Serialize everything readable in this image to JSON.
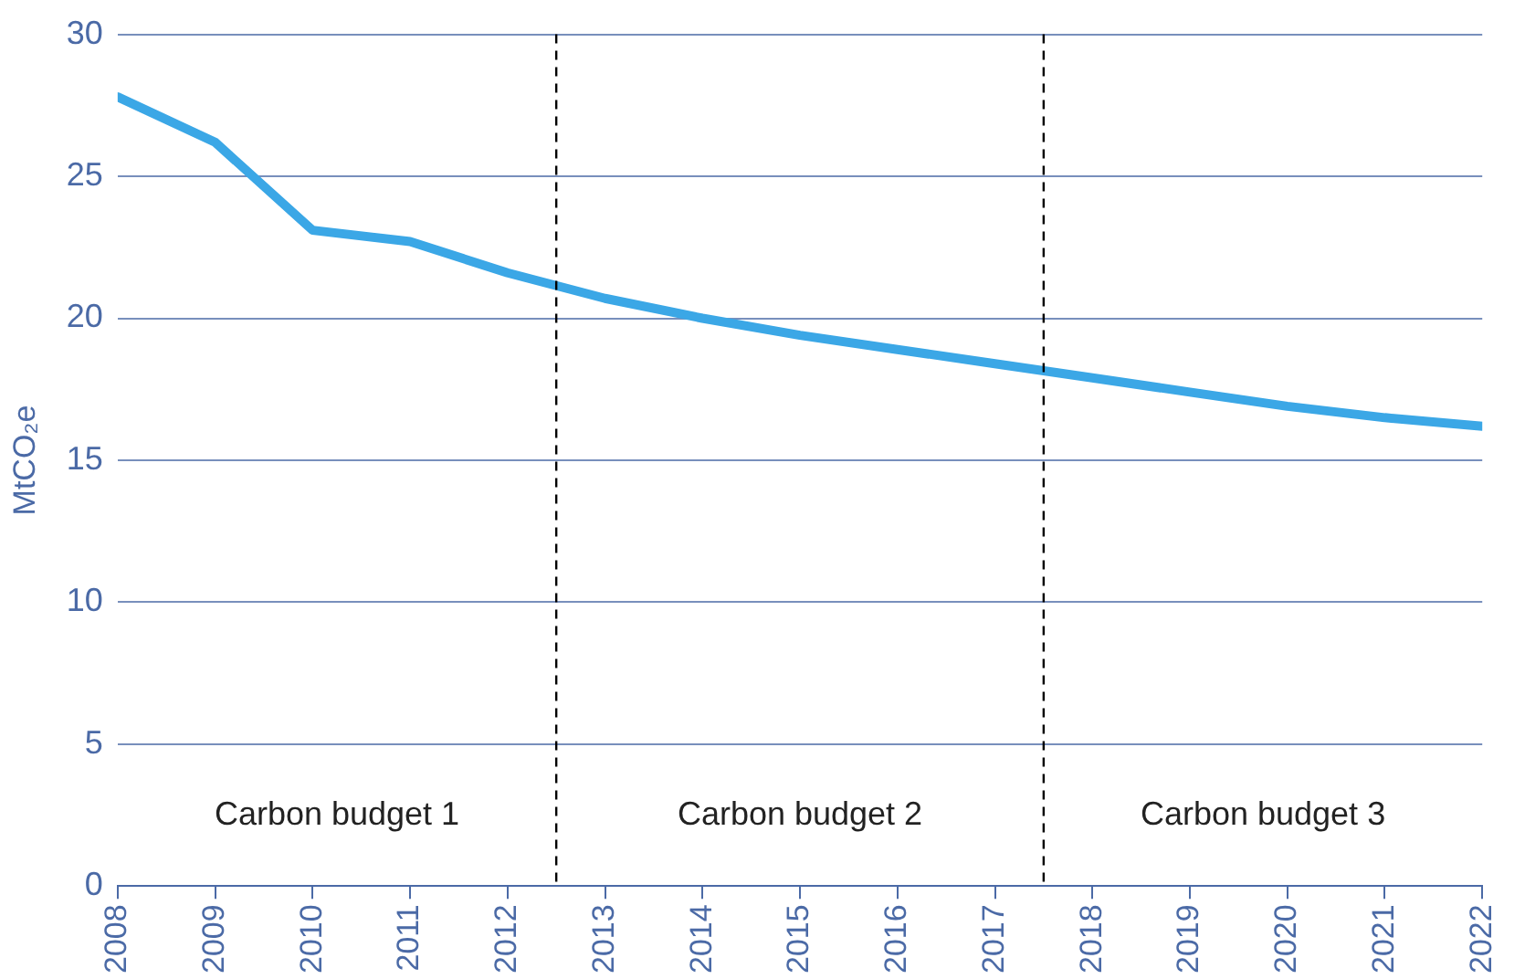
{
  "chart_data": {
    "type": "line",
    "ylabel": "MtCO₂e",
    "x": [
      2008,
      2009,
      2010,
      2011,
      2012,
      2013,
      2014,
      2015,
      2016,
      2017,
      2018,
      2019,
      2020,
      2021,
      2022
    ],
    "series": [
      {
        "color": "#3ba7e6",
        "values": [
          27.8,
          26.2,
          23.1,
          22.7,
          21.6,
          20.7,
          20.0,
          19.4,
          18.9,
          18.4,
          17.9,
          17.4,
          16.9,
          16.5,
          16.2
        ]
      }
    ],
    "xlim": [
      2008,
      2022
    ],
    "xticks": [
      2008,
      2009,
      2010,
      2011,
      2012,
      2013,
      2014,
      2015,
      2016,
      2017,
      2018,
      2019,
      2020,
      2021,
      2022
    ],
    "ylim": [
      0,
      30
    ],
    "yticks": [
      0,
      5,
      10,
      15,
      20,
      25,
      30
    ],
    "ref_lines": [
      {
        "axis": "x",
        "value": 2012.5,
        "color": "#000000",
        "line_style": "dashed"
      },
      {
        "axis": "x",
        "value": 2017.5,
        "color": "#000000",
        "line_style": "dashed"
      }
    ],
    "annotations": [
      "Carbon budget 1",
      "Carbon budget 2",
      "Carbon budget 3"
    ],
    "grid": "y",
    "legend": false,
    "marker": "none",
    "line_style": "solid"
  }
}
